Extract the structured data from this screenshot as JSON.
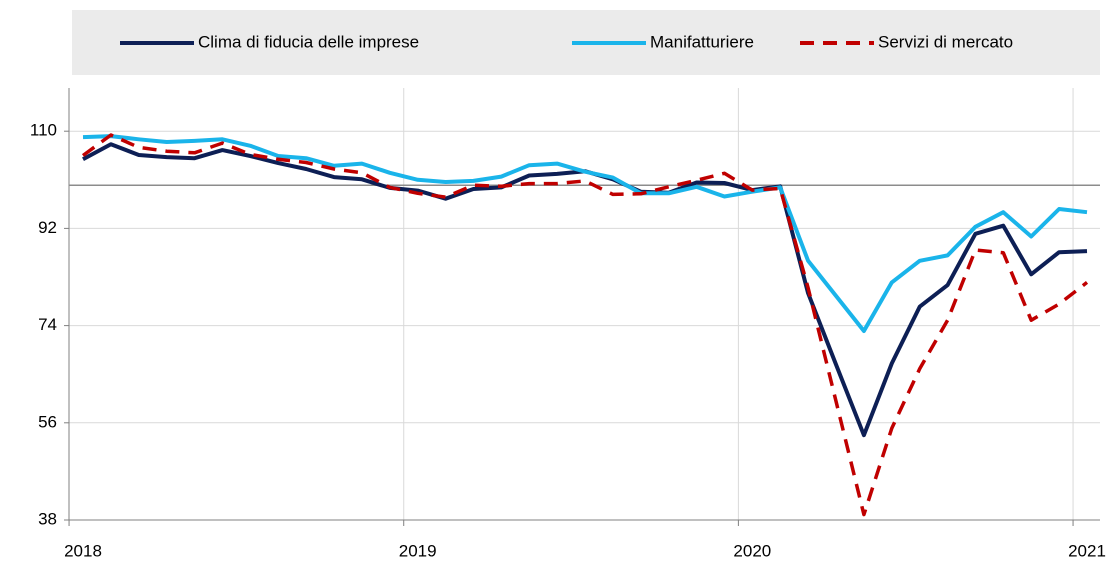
{
  "chart_data": {
    "type": "line",
    "categories": [
      "2018",
      null,
      null,
      null,
      null,
      null,
      null,
      null,
      null,
      null,
      null,
      null,
      "2019",
      null,
      null,
      null,
      null,
      null,
      null,
      null,
      null,
      null,
      null,
      null,
      "2020",
      null,
      null,
      null,
      null,
      null,
      null,
      null,
      null,
      null,
      null,
      null,
      "2021"
    ],
    "series": [
      {
        "name": "Clima di fiducia delle imprese",
        "color": "#0d1f55",
        "dash": false,
        "values": [
          104.8,
          107.6,
          105.6,
          105.2,
          105.0,
          106.5,
          105.4,
          104.1,
          103.0,
          101.5,
          101.1,
          99.5,
          99.0,
          97.5,
          99.3,
          99.6,
          101.8,
          102.1,
          102.6,
          101.1,
          98.8,
          98.6,
          100.5,
          100.4,
          99.1,
          99.8,
          80.0,
          66.8,
          53.7,
          67.0,
          77.5,
          81.5,
          91.0,
          92.5,
          83.5,
          87.6,
          87.8
        ]
      },
      {
        "name": "Manifatturiere",
        "color": "#1ab4ea",
        "dash": false,
        "values": [
          108.9,
          109.1,
          108.5,
          108.0,
          108.2,
          108.5,
          107.3,
          105.4,
          105.0,
          103.6,
          104.0,
          102.3,
          101.0,
          100.6,
          100.8,
          101.6,
          103.7,
          104.0,
          102.5,
          101.4,
          98.5,
          98.5,
          99.7,
          97.9,
          98.8,
          99.6,
          86.0,
          79.5,
          73.0,
          82.0,
          86.0,
          87.0,
          92.3,
          95.0,
          90.5,
          95.6,
          95.0
        ]
      },
      {
        "name": "Servizi di mercato",
        "color": "#c00000",
        "dash": true,
        "values": [
          105.5,
          109.3,
          107.0,
          106.3,
          106.0,
          107.8,
          105.7,
          104.8,
          104.2,
          103.0,
          102.3,
          99.6,
          98.5,
          97.8,
          100.0,
          99.8,
          100.3,
          100.3,
          100.8,
          98.3,
          98.4,
          99.7,
          100.9,
          102.2,
          99.1,
          99.4,
          81.0,
          60.0,
          39.0,
          55.0,
          66.0,
          75.0,
          88.0,
          87.5,
          75.0,
          78.0,
          82.0
        ]
      }
    ],
    "ylim": [
      38,
      118
    ],
    "yticks": [
      38,
      56,
      74,
      92,
      110
    ],
    "reference_line": 100,
    "grid": true,
    "legend": "top"
  }
}
